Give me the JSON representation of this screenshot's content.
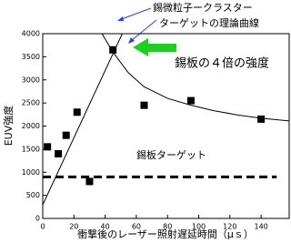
{
  "chart_data": {
    "type": "scatter",
    "x_label": "衝撃後のレーザー照射遅延時間（μｓ）",
    "y_label": "EUV強度",
    "xlim": [
      0,
      158
    ],
    "ylim": [
      0,
      4000
    ],
    "xticks": [
      0,
      20,
      40,
      60,
      80,
      100,
      120,
      140
    ],
    "yticks": [
      0,
      500,
      1000,
      1500,
      2000,
      2500,
      3000,
      3500,
      4000
    ],
    "annotations": [
      "錫微粒子ークラスター",
      "ターゲットの理論曲線",
      "錫板の４倍の強度",
      "錫板ターゲット"
    ],
    "series": [
      {
        "kind": "scatter",
        "color": "#000000",
        "x": [
          3,
          10,
          15,
          22,
          30,
          45,
          65,
          95,
          140
        ],
        "values": [
          1550,
          1400,
          1800,
          2300,
          800,
          3650,
          2450,
          2550,
          2150
        ]
      },
      {
        "kind": "line",
        "color": "#000000",
        "x": [
          -2,
          51
        ],
        "values": [
          150,
          4000
        ]
      },
      {
        "kind": "line",
        "color": "#000000",
        "x": [
          38,
          45,
          55,
          65,
          80,
          95,
          110,
          125,
          140,
          158
        ],
        "values": [
          4000,
          3600,
          3150,
          2850,
          2600,
          2450,
          2330,
          2240,
          2170,
          2110
        ]
      },
      {
        "kind": "dash",
        "color": "#000000",
        "x": [
          0,
          150
        ],
        "values": [
          900,
          900
        ]
      }
    ]
  }
}
